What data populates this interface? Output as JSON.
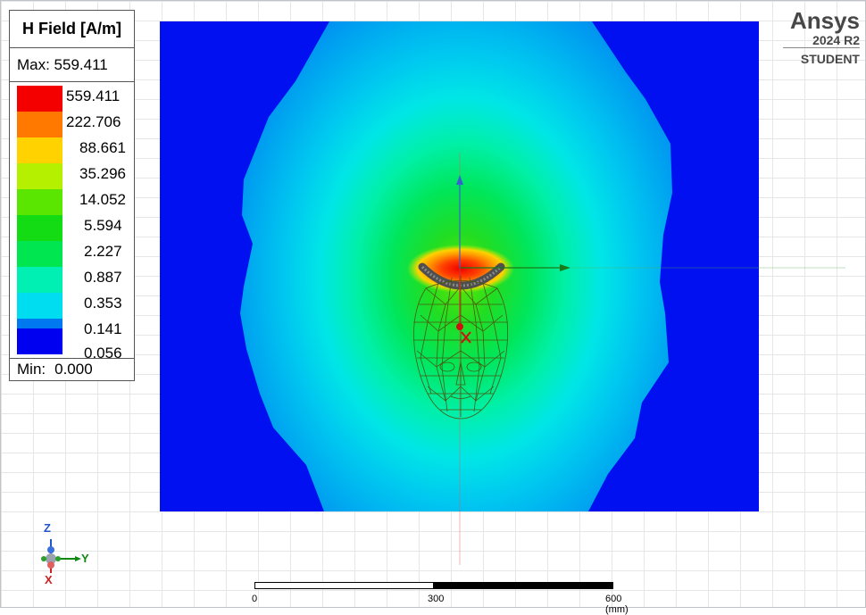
{
  "legend": {
    "title": "H Field [A/m]",
    "max_label": "Max: 559.411",
    "min_label": "Min:",
    "min_value": "0.000",
    "levels": [
      {
        "value": "559.411",
        "color": "#f50000"
      },
      {
        "value": "222.706",
        "color": "#ff7800"
      },
      {
        "value": "88.661",
        "color": "#ffd200"
      },
      {
        "value": "35.296",
        "color": "#b4f000"
      },
      {
        "value": "14.052",
        "color": "#5ae600"
      },
      {
        "value": "5.594",
        "color": "#14dc14"
      },
      {
        "value": "2.227",
        "color": "#00e650"
      },
      {
        "value": "0.887",
        "color": "#00f0b4"
      },
      {
        "value": "0.353",
        "color": "#00dcf0"
      },
      {
        "value": "0.141",
        "color": "#0078f0"
      },
      {
        "value": "0.056",
        "color": "#0000f0"
      }
    ]
  },
  "logo": {
    "name": "Ansys",
    "version": "2024 R2",
    "license": "STUDENT"
  },
  "triad": {
    "z": "Z",
    "y": "Y",
    "x": "X"
  },
  "scale_bar": {
    "ticks": [
      "0",
      "300",
      "600 (mm)"
    ]
  }
}
